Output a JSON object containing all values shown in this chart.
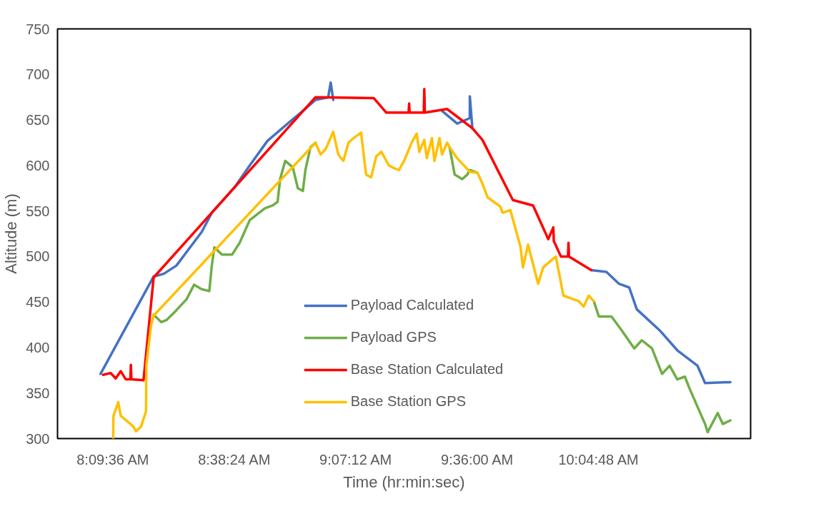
{
  "chart_data": {
    "type": "line",
    "xlabel": "Time (hr:min:sec)",
    "ylabel": "Altitude (m)",
    "xlim": [
      7.94,
      10.68
    ],
    "ylim": [
      300,
      750
    ],
    "xticks": [
      {
        "value": 8.16,
        "label": "8:09:36 AM"
      },
      {
        "value": 8.64,
        "label": "8:38:24 AM"
      },
      {
        "value": 9.12,
        "label": "9:07:12 AM"
      },
      {
        "value": 9.6,
        "label": "9:36:00 AM"
      },
      {
        "value": 10.08,
        "label": "10:04:48 AM"
      }
    ],
    "yticks": [
      300,
      350,
      400,
      450,
      500,
      550,
      600,
      650,
      700,
      750
    ],
    "grid": false,
    "legend": "bottom",
    "marker": "none",
    "line_style": "solid",
    "series": [
      {
        "name": "Payload Calculated",
        "color": "#4472c4",
        "x": [
          8.11,
          8.32,
          8.36,
          8.41,
          8.51,
          8.55,
          8.64,
          8.7,
          8.77,
          8.85,
          8.91,
          8.96,
          9.01,
          9.02,
          9.03,
          9.19,
          9.24,
          9.46,
          9.52,
          9.57,
          9.57,
          9.58,
          9.62,
          9.74,
          9.82,
          9.88,
          9.93,
          10.05,
          10.11,
          10.16,
          10.2,
          10.23,
          10.32,
          10.39,
          10.47,
          10.5,
          10.6
        ],
        "values": [
          371,
          478,
          481,
          490,
          527,
          548,
          576,
          600,
          627,
          646,
          660,
          672,
          675,
          691,
          672,
          null,
          null,
          660,
          646,
          652,
          676,
          641,
          null,
          null,
          null,
          null,
          null,
          485,
          483,
          470,
          466,
          442,
          419,
          397,
          380,
          361,
          362
        ]
      },
      {
        "name": "Payload GPS",
        "color": "#70ad47",
        "x": [
          8.32,
          8.35,
          8.37,
          8.41,
          8.45,
          8.48,
          8.51,
          8.54,
          8.55,
          8.56,
          8.59,
          8.63,
          8.66,
          8.7,
          8.76,
          8.79,
          8.81,
          8.82,
          8.84,
          8.87,
          8.89,
          8.91,
          8.92,
          8.94,
          8.96,
          8.98,
          9.0,
          9.03,
          9.05,
          9.07,
          9.09,
          9.11,
          9.14,
          9.16,
          9.18,
          9.2,
          9.22,
          9.25,
          9.27,
          9.29,
          9.31,
          9.34,
          9.36,
          9.37,
          9.39,
          9.4,
          9.42,
          9.43,
          9.45,
          9.46,
          9.48,
          9.49,
          9.51,
          9.54,
          9.56,
          9.57,
          9.6,
          9.62,
          9.64,
          9.69,
          9.7,
          9.73,
          9.77,
          9.78,
          9.8,
          9.84,
          9.86,
          9.91,
          9.94,
          10.0,
          10.02,
          10.04,
          10.06,
          10.08,
          10.13,
          10.17,
          10.22,
          10.25,
          10.29,
          10.33,
          10.36,
          10.39,
          10.42,
          10.44,
          10.5,
          10.51,
          10.55,
          10.57,
          10.6
        ],
        "values": [
          436,
          428,
          430,
          441,
          453,
          469,
          464,
          462,
          490,
          510,
          502,
          502,
          515,
          540,
          553,
          556,
          560,
          585,
          605,
          598,
          575,
          572,
          595,
          620,
          625,
          null,
          null,
          null,
          null,
          null,
          null,
          null,
          null,
          null,
          null,
          null,
          null,
          null,
          null,
          null,
          null,
          null,
          null,
          null,
          null,
          null,
          null,
          null,
          null,
          null,
          null,
          620,
          590,
          585,
          590,
          595,
          592,
          null,
          null,
          null,
          null,
          null,
          null,
          null,
          null,
          null,
          null,
          null,
          null,
          null,
          null,
          null,
          451,
          434,
          434,
          419,
          399,
          408,
          399,
          371,
          380,
          365,
          368,
          354,
          316,
          307,
          328,
          316,
          320
        ]
      },
      {
        "name": "Base Station Calculated",
        "color": "#ff0000",
        "x": [
          8.12,
          8.15,
          8.17,
          8.19,
          8.21,
          8.228,
          8.23,
          8.232,
          8.28,
          8.32,
          8.96,
          9.19,
          9.24,
          9.328,
          9.33,
          9.332,
          9.388,
          9.39,
          9.392,
          9.48,
          9.58,
          9.62,
          9.74,
          9.82,
          9.88,
          9.9,
          9.902,
          9.93,
          9.958,
          9.96,
          9.962,
          10.05
        ],
        "values": [
          370,
          372,
          366,
          374,
          365,
          365,
          381,
          365,
          364,
          477,
          675,
          674,
          658,
          658,
          668,
          658,
          658,
          684,
          658,
          662,
          641,
          628,
          562,
          556,
          519,
          532,
          517,
          500,
          500,
          515,
          500,
          485
        ]
      },
      {
        "name": "Base Station GPS",
        "color": "#ffc000",
        "x": [
          8.16,
          8.161,
          8.18,
          8.19,
          8.22,
          8.24,
          8.25,
          8.27,
          8.29,
          8.291,
          8.31,
          8.32,
          8.96,
          8.98,
          9.0,
          9.03,
          9.05,
          9.07,
          9.09,
          9.11,
          9.14,
          9.16,
          9.18,
          9.2,
          9.22,
          9.25,
          9.27,
          9.29,
          9.31,
          9.34,
          9.36,
          9.37,
          9.39,
          9.4,
          9.42,
          9.43,
          9.45,
          9.46,
          9.48,
          9.49,
          9.52,
          9.57,
          9.6,
          9.62,
          9.64,
          9.69,
          9.7,
          9.73,
          9.77,
          9.78,
          9.8,
          9.84,
          9.86,
          9.91,
          9.94,
          10.0,
          10.02,
          10.04,
          10.06
        ],
        "values": [
          300,
          325,
          340,
          325,
          318,
          313,
          308,
          313,
          330,
          380,
          425,
          435,
          625,
          612,
          618,
          637,
          612,
          605,
          625,
          630,
          636,
          590,
          587,
          610,
          615,
          600,
          597,
          595,
          605,
          625,
          635,
          615,
          628,
          608,
          630,
          605,
          630,
          612,
          625,
          620,
          608,
          593,
          592,
          580,
          565,
          555,
          548,
          551,
          511,
          488,
          513,
          470,
          488,
          500,
          457,
          451,
          445,
          457,
          451
        ]
      }
    ]
  }
}
